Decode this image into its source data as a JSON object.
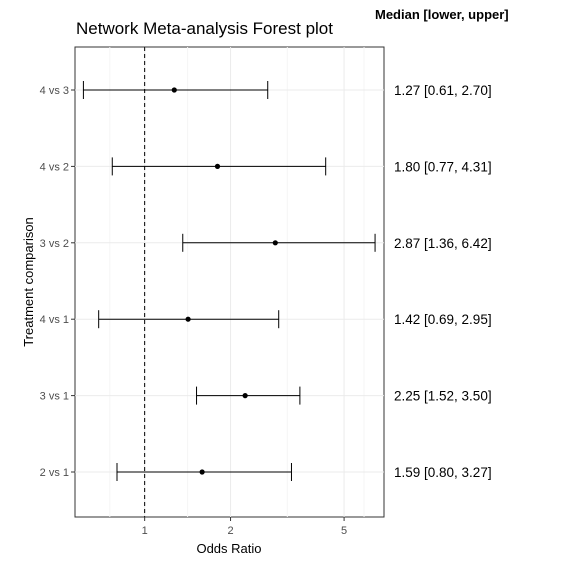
{
  "chart_data": {
    "type": "forest",
    "title": "Network Meta-analysis Forest plot",
    "column_header": "Median [lower, upper]",
    "xlabel": "Odds Ratio",
    "ylabel": "Treatment comparison",
    "x_scale": "log",
    "xlim": [
      0.57,
      6.9
    ],
    "x_ticks": [
      1,
      2,
      5
    ],
    "x_tick_labels": [
      "1",
      "2",
      "5"
    ],
    "reference_line": 1,
    "grid": true,
    "rows": [
      {
        "label": "4 vs 3",
        "median": 1.27,
        "lower": 0.61,
        "upper": 2.7,
        "text": "1.27 [0.61, 2.70]"
      },
      {
        "label": "4 vs 2",
        "median": 1.8,
        "lower": 0.77,
        "upper": 4.31,
        "text": "1.80 [0.77, 4.31]"
      },
      {
        "label": "3 vs 2",
        "median": 2.87,
        "lower": 1.36,
        "upper": 6.42,
        "text": "2.87 [1.36, 6.42]"
      },
      {
        "label": "4 vs 1",
        "median": 1.42,
        "lower": 0.69,
        "upper": 2.95,
        "text": "1.42 [0.69, 2.95]"
      },
      {
        "label": "3 vs 1",
        "median": 2.25,
        "lower": 1.52,
        "upper": 3.5,
        "text": "2.25 [1.52, 3.50]"
      },
      {
        "label": "2 vs 1",
        "median": 1.59,
        "lower": 0.8,
        "upper": 3.27,
        "text": "1.59 [0.80, 3.27]"
      }
    ]
  }
}
